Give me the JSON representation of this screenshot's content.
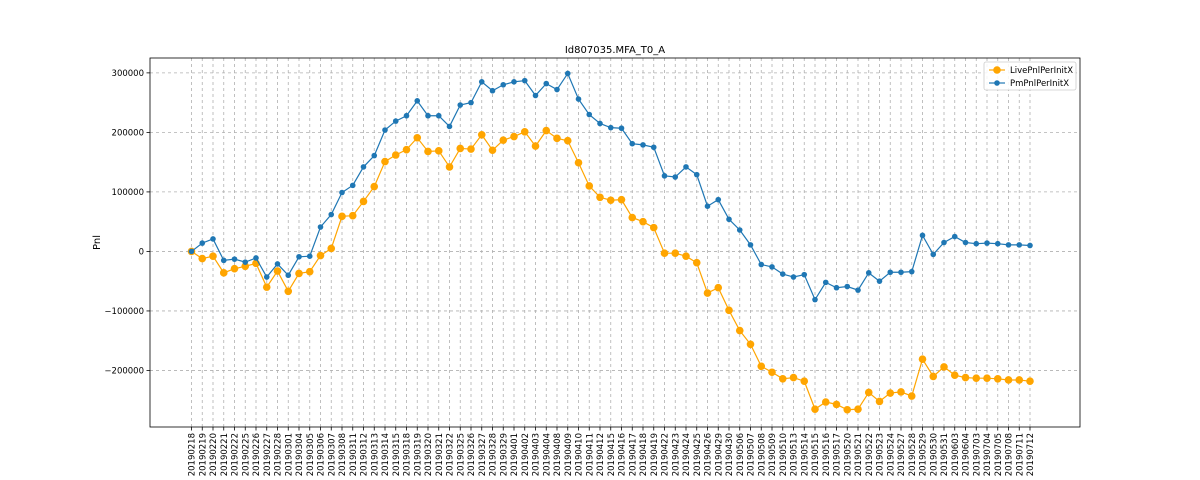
{
  "chart_data": {
    "type": "line",
    "title": "Id807035.MFA_T0_A",
    "xlabel": "",
    "ylabel": "Pnl",
    "ylim": [
      -295000,
      325000
    ],
    "yticks": [
      -200000,
      -100000,
      0,
      100000,
      200000,
      300000
    ],
    "ytick_labels": [
      "−200000",
      "−100000",
      "0",
      "100000",
      "200000",
      "300000"
    ],
    "grid": true,
    "legend_position": "top-right",
    "categories": [
      "20190218",
      "20190219",
      "20190220",
      "20190221",
      "20190222",
      "20190225",
      "20190226",
      "20190227",
      "20190228",
      "20190301",
      "20190304",
      "20190305",
      "20190306",
      "20190307",
      "20190308",
      "20190311",
      "20190312",
      "20190313",
      "20190314",
      "20190315",
      "20190318",
      "20190319",
      "20190320",
      "20190321",
      "20190322",
      "20190325",
      "20190326",
      "20190327",
      "20190328",
      "20190329",
      "20190401",
      "20190402",
      "20190403",
      "20190404",
      "20190408",
      "20190409",
      "20190410",
      "20190411",
      "20190412",
      "20190415",
      "20190416",
      "20190417",
      "20190418",
      "20190419",
      "20190422",
      "20190423",
      "20190424",
      "20190425",
      "20190426",
      "20190429",
      "20190430",
      "20190506",
      "20190507",
      "20190508",
      "20190509",
      "20190510",
      "20190513",
      "20190514",
      "20190515",
      "20190516",
      "20190517",
      "20190520",
      "20190521",
      "20190522",
      "20190523",
      "20190524",
      "20190527",
      "20190528",
      "20190529",
      "20190530",
      "20190531",
      "20190603",
      "20190604",
      "20190703",
      "20190704",
      "20190705",
      "20190708",
      "20190711",
      "20190712"
    ],
    "series": [
      {
        "name": "LivePnlPerInitX",
        "color": "#ffa500",
        "marker": "circle-large",
        "values": [
          0,
          -12000,
          -8000,
          -36000,
          -29000,
          -25000,
          -20000,
          -60000,
          -33000,
          -67000,
          -37000,
          -34000,
          -7000,
          5000,
          59000,
          60000,
          84000,
          109000,
          151000,
          162000,
          171000,
          191000,
          168000,
          169000,
          142000,
          173000,
          172000,
          196000,
          170000,
          187000,
          193000,
          201000,
          177000,
          203000,
          190000,
          186000,
          149000,
          110000,
          91000,
          86000,
          87000,
          57000,
          50000,
          40000,
          -3000,
          -3000,
          -8000,
          -19000,
          -70000,
          -61000,
          -99000,
          -133000,
          -156000,
          -193000,
          -203000,
          -214000,
          -212000,
          -218000,
          -265000,
          -253000,
          -257000,
          -266000,
          -265000,
          -237000,
          -252000,
          -238000,
          -236000,
          -243000,
          -181000,
          -210000,
          -194000,
          -208000,
          -212000,
          -213000,
          -213000,
          -214000,
          -216000,
          -216000,
          -218000
        ]
      },
      {
        "name": "PmPnlPerInitX",
        "color": "#1f77b4",
        "marker": "circle",
        "values": [
          0,
          14000,
          21000,
          -15000,
          -13000,
          -18000,
          -11000,
          -43000,
          -21000,
          -40000,
          -9000,
          -8000,
          41000,
          62000,
          99000,
          111000,
          142000,
          161000,
          204000,
          219000,
          228000,
          253000,
          228000,
          228000,
          210000,
          246000,
          250000,
          285000,
          270000,
          280000,
          285000,
          287000,
          262000,
          282000,
          272000,
          299000,
          256000,
          230000,
          215000,
          208000,
          207000,
          181000,
          179000,
          175000,
          127000,
          125000,
          142000,
          129000,
          76000,
          87000,
          54000,
          36000,
          11000,
          -22000,
          -26000,
          -38000,
          -43000,
          -39000,
          -81000,
          -52000,
          -61000,
          -59000,
          -65000,
          -36000,
          -50000,
          -35000,
          -35000,
          -34000,
          27000,
          -5000,
          15000,
          25000,
          15000,
          13000,
          14000,
          13000,
          11000,
          11000,
          10000
        ]
      }
    ]
  }
}
